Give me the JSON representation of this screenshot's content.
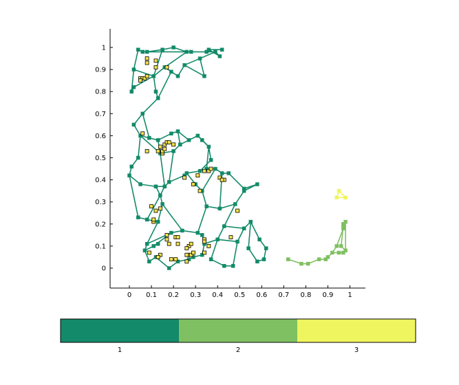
{
  "chart_data": {
    "type": "scatter",
    "title": "",
    "xlabel": "",
    "ylabel": "",
    "xlim": [
      -0.09,
      1.07
    ],
    "ylim": [
      -0.09,
      1.09
    ],
    "xticks": [
      "0",
      "0.1",
      "0.2",
      "0.3",
      "0.4",
      "0.5",
      "0.6",
      "0.7",
      "0.8",
      "0.9",
      "1"
    ],
    "yticks": [
      "0",
      "0.1",
      "0.2",
      "0.3",
      "0.4",
      "0.5",
      "0.6",
      "0.7",
      "0.8",
      "0.9",
      "1"
    ],
    "grid": false,
    "colorbar": {
      "ticks": [
        "1",
        "2",
        "3"
      ],
      "colors": [
        "#138A69",
        "#7FC062",
        "#EFF55E"
      ],
      "placement": "bottom"
    },
    "series": [
      {
        "name": "1",
        "color": "#138A69",
        "type": "network",
        "nodes": [
          [
            0.04,
            0.99
          ],
          [
            0.06,
            0.98
          ],
          [
            0.08,
            0.98
          ],
          [
            0.15,
            0.99
          ],
          [
            0.2,
            1.0
          ],
          [
            0.26,
            0.98
          ],
          [
            0.28,
            0.98
          ],
          [
            0.35,
            0.98
          ],
          [
            0.36,
            0.99
          ],
          [
            0.42,
            0.99
          ],
          [
            0.41,
            0.96
          ],
          [
            0.39,
            0.98
          ],
          [
            0.01,
            0.8
          ],
          [
            0.02,
            0.82
          ],
          [
            0.02,
            0.9
          ],
          [
            0.11,
            0.87
          ],
          [
            0.16,
            0.91
          ],
          [
            0.19,
            0.89
          ],
          [
            0.22,
            0.87
          ],
          [
            0.25,
            0.92
          ],
          [
            0.32,
            0.95
          ],
          [
            0.34,
            0.87
          ],
          [
            0.13,
            0.77
          ],
          [
            0.12,
            0.8
          ],
          [
            0.06,
            0.7
          ],
          [
            0.02,
            0.65
          ],
          [
            0.05,
            0.6
          ],
          [
            0.04,
            0.5
          ],
          [
            0.01,
            0.46
          ],
          [
            0.0,
            0.42
          ],
          [
            0.05,
            0.38
          ],
          [
            0.09,
            0.59
          ],
          [
            0.13,
            0.58
          ],
          [
            0.19,
            0.61
          ],
          [
            0.22,
            0.62
          ],
          [
            0.23,
            0.56
          ],
          [
            0.2,
            0.53
          ],
          [
            0.14,
            0.52
          ],
          [
            0.27,
            0.58
          ],
          [
            0.31,
            0.6
          ],
          [
            0.33,
            0.58
          ],
          [
            0.36,
            0.55
          ],
          [
            0.37,
            0.49
          ],
          [
            0.32,
            0.44
          ],
          [
            0.26,
            0.43
          ],
          [
            0.25,
            0.42
          ],
          [
            0.18,
            0.39
          ],
          [
            0.16,
            0.37
          ],
          [
            0.12,
            0.37
          ],
          [
            0.04,
            0.23
          ],
          [
            0.08,
            0.22
          ],
          [
            0.13,
            0.21
          ],
          [
            0.15,
            0.29
          ],
          [
            0.14,
            0.33
          ],
          [
            0.35,
            0.45
          ],
          [
            0.39,
            0.45
          ],
          [
            0.42,
            0.43
          ],
          [
            0.45,
            0.43
          ],
          [
            0.52,
            0.36
          ],
          [
            0.58,
            0.38
          ],
          [
            0.52,
            0.35
          ],
          [
            0.48,
            0.29
          ],
          [
            0.41,
            0.27
          ],
          [
            0.35,
            0.28
          ],
          [
            0.33,
            0.35
          ],
          [
            0.3,
            0.38
          ],
          [
            0.43,
            0.19
          ],
          [
            0.4,
            0.13
          ],
          [
            0.37,
            0.04
          ],
          [
            0.43,
            0.01
          ],
          [
            0.47,
            0.01
          ],
          [
            0.49,
            0.12
          ],
          [
            0.52,
            0.18
          ],
          [
            0.55,
            0.21
          ],
          [
            0.59,
            0.13
          ],
          [
            0.62,
            0.09
          ],
          [
            0.61,
            0.04
          ],
          [
            0.58,
            0.03
          ],
          [
            0.54,
            0.09
          ],
          [
            0.08,
            0.11
          ],
          [
            0.07,
            0.08
          ],
          [
            0.09,
            0.03
          ],
          [
            0.12,
            0.05
          ],
          [
            0.18,
            0.0
          ],
          [
            0.22,
            0.03
          ],
          [
            0.27,
            0.04
          ],
          [
            0.29,
            0.05
          ],
          [
            0.33,
            0.06
          ],
          [
            0.34,
            0.11
          ],
          [
            0.33,
            0.15
          ],
          [
            0.31,
            0.16
          ],
          [
            0.24,
            0.17
          ],
          [
            0.19,
            0.16
          ],
          [
            0.13,
            0.11
          ],
          [
            0.11,
            0.1
          ]
        ],
        "edges": [
          [
            0,
            1
          ],
          [
            1,
            2
          ],
          [
            2,
            3
          ],
          [
            3,
            4
          ],
          [
            4,
            5
          ],
          [
            5,
            6
          ],
          [
            6,
            7
          ],
          [
            7,
            8
          ],
          [
            8,
            9
          ],
          [
            8,
            10
          ],
          [
            10,
            11
          ],
          [
            11,
            7
          ],
          [
            2,
            6
          ],
          [
            0,
            14
          ],
          [
            14,
            12
          ],
          [
            12,
            13
          ],
          [
            13,
            15
          ],
          [
            15,
            16
          ],
          [
            16,
            17
          ],
          [
            17,
            18
          ],
          [
            18,
            19
          ],
          [
            19,
            20
          ],
          [
            20,
            11
          ],
          [
            20,
            21
          ],
          [
            21,
            19
          ],
          [
            17,
            22
          ],
          [
            22,
            23
          ],
          [
            23,
            15
          ],
          [
            15,
            3
          ],
          [
            16,
            5
          ],
          [
            14,
            15
          ],
          [
            22,
            24
          ],
          [
            24,
            25
          ],
          [
            25,
            26
          ],
          [
            26,
            27
          ],
          [
            27,
            28
          ],
          [
            28,
            29
          ],
          [
            29,
            30
          ],
          [
            24,
            31
          ],
          [
            31,
            32
          ],
          [
            32,
            33
          ],
          [
            33,
            34
          ],
          [
            34,
            35
          ],
          [
            35,
            36
          ],
          [
            36,
            37
          ],
          [
            37,
            26
          ],
          [
            31,
            26
          ],
          [
            32,
            37
          ],
          [
            34,
            38
          ],
          [
            38,
            39
          ],
          [
            39,
            40
          ],
          [
            40,
            41
          ],
          [
            41,
            42
          ],
          [
            42,
            43
          ],
          [
            43,
            44
          ],
          [
            44,
            45
          ],
          [
            45,
            46
          ],
          [
            46,
            47
          ],
          [
            47,
            48
          ],
          [
            48,
            30
          ],
          [
            47,
            37
          ],
          [
            36,
            46
          ],
          [
            38,
            35
          ],
          [
            39,
            41
          ],
          [
            29,
            49
          ],
          [
            49,
            50
          ],
          [
            50,
            51
          ],
          [
            51,
            52
          ],
          [
            52,
            53
          ],
          [
            53,
            48
          ],
          [
            50,
            53
          ],
          [
            53,
            47
          ],
          [
            41,
            54
          ],
          [
            54,
            55
          ],
          [
            55,
            56
          ],
          [
            56,
            57
          ],
          [
            57,
            58
          ],
          [
            58,
            59
          ],
          [
            59,
            60
          ],
          [
            60,
            61
          ],
          [
            61,
            62
          ],
          [
            62,
            63
          ],
          [
            63,
            64
          ],
          [
            64,
            65
          ],
          [
            65,
            44
          ],
          [
            55,
            64
          ],
          [
            56,
            62
          ],
          [
            43,
            54
          ],
          [
            60,
            58
          ],
          [
            61,
            66
          ],
          [
            66,
            67
          ],
          [
            67,
            68
          ],
          [
            68,
            69
          ],
          [
            69,
            70
          ],
          [
            70,
            71
          ],
          [
            71,
            72
          ],
          [
            72,
            73
          ],
          [
            73,
            74
          ],
          [
            74,
            75
          ],
          [
            75,
            76
          ],
          [
            76,
            77
          ],
          [
            77,
            78
          ],
          [
            78,
            73
          ],
          [
            71,
            67
          ],
          [
            72,
            66
          ],
          [
            51,
            79
          ],
          [
            79,
            80
          ],
          [
            80,
            81
          ],
          [
            81,
            82
          ],
          [
            82,
            83
          ],
          [
            83,
            84
          ],
          [
            84,
            85
          ],
          [
            85,
            86
          ],
          [
            86,
            87
          ],
          [
            87,
            88
          ],
          [
            88,
            89
          ],
          [
            89,
            90
          ],
          [
            90,
            91
          ],
          [
            91,
            92
          ],
          [
            92,
            79
          ],
          [
            93,
            94
          ],
          [
            94,
            92
          ],
          [
            93,
            80
          ],
          [
            88,
            67
          ],
          [
            63,
            90
          ],
          [
            52,
            91
          ]
        ],
        "markers_yellow": [
          [
            0.08,
            0.95
          ],
          [
            0.12,
            0.94
          ],
          [
            0.08,
            0.93
          ],
          [
            0.12,
            0.91
          ],
          [
            0.17,
            0.91
          ],
          [
            0.05,
            0.86
          ],
          [
            0.06,
            0.86
          ],
          [
            0.07,
            0.86
          ],
          [
            0.08,
            0.87
          ],
          [
            0.05,
            0.85
          ],
          [
            0.06,
            0.61
          ],
          [
            0.16,
            0.56
          ],
          [
            0.17,
            0.57
          ],
          [
            0.18,
            0.57
          ],
          [
            0.14,
            0.55
          ],
          [
            0.13,
            0.53
          ],
          [
            0.08,
            0.53
          ],
          [
            0.15,
            0.52
          ],
          [
            0.15,
            0.53
          ],
          [
            0.16,
            0.54
          ],
          [
            0.2,
            0.56
          ],
          [
            0.34,
            0.44
          ],
          [
            0.36,
            0.44
          ],
          [
            0.37,
            0.45
          ],
          [
            0.31,
            0.42
          ],
          [
            0.41,
            0.41
          ],
          [
            0.43,
            0.4
          ],
          [
            0.42,
            0.4
          ],
          [
            0.25,
            0.41
          ],
          [
            0.29,
            0.38
          ],
          [
            0.32,
            0.35
          ],
          [
            0.1,
            0.28
          ],
          [
            0.12,
            0.26
          ],
          [
            0.14,
            0.27
          ],
          [
            0.11,
            0.21
          ],
          [
            0.11,
            0.22
          ],
          [
            0.49,
            0.26
          ],
          [
            0.17,
            0.15
          ],
          [
            0.17,
            0.13
          ],
          [
            0.21,
            0.14
          ],
          [
            0.22,
            0.14
          ],
          [
            0.18,
            0.11
          ],
          [
            0.22,
            0.11
          ],
          [
            0.27,
            0.1
          ],
          [
            0.26,
            0.09
          ],
          [
            0.28,
            0.11
          ],
          [
            0.34,
            0.13
          ],
          [
            0.34,
            0.12
          ],
          [
            0.46,
            0.14
          ],
          [
            0.36,
            0.1
          ],
          [
            0.09,
            0.07
          ],
          [
            0.14,
            0.06
          ],
          [
            0.13,
            0.05
          ],
          [
            0.19,
            0.04
          ],
          [
            0.21,
            0.04
          ],
          [
            0.26,
            0.03
          ],
          [
            0.27,
            0.06
          ],
          [
            0.28,
            0.06
          ],
          [
            0.29,
            0.07
          ],
          [
            0.34,
            0.07
          ],
          [
            0.26,
            0.06
          ]
        ]
      },
      {
        "name": "2",
        "color": "#7FC062",
        "type": "network",
        "nodes": [
          [
            0.72,
            0.04
          ],
          [
            0.78,
            0.02
          ],
          [
            0.81,
            0.02
          ],
          [
            0.86,
            0.04
          ],
          [
            0.89,
            0.04
          ],
          [
            0.9,
            0.05
          ],
          [
            0.92,
            0.07
          ],
          [
            0.95,
            0.07
          ],
          [
            0.97,
            0.07
          ],
          [
            0.98,
            0.08
          ],
          [
            0.96,
            0.1
          ],
          [
            0.94,
            0.1
          ],
          [
            0.97,
            0.19
          ],
          [
            0.97,
            0.2
          ],
          [
            0.98,
            0.21
          ],
          [
            0.97,
            0.18
          ]
        ],
        "edges": [
          [
            0,
            1
          ],
          [
            1,
            2
          ],
          [
            2,
            3
          ],
          [
            3,
            4
          ],
          [
            4,
            5
          ],
          [
            5,
            6
          ],
          [
            6,
            7
          ],
          [
            7,
            8
          ],
          [
            8,
            9
          ],
          [
            9,
            10
          ],
          [
            10,
            11
          ],
          [
            11,
            6
          ],
          [
            10,
            12
          ],
          [
            12,
            13
          ],
          [
            13,
            14
          ],
          [
            14,
            9
          ],
          [
            12,
            15
          ],
          [
            15,
            11
          ],
          [
            13,
            15
          ]
        ]
      },
      {
        "name": "3",
        "color": "#EFF55E",
        "type": "network",
        "nodes": [
          [
            0.95,
            0.35
          ],
          [
            0.94,
            0.32
          ],
          [
            0.98,
            0.32
          ]
        ],
        "edges": [
          [
            0,
            1
          ],
          [
            1,
            2
          ],
          [
            2,
            0
          ]
        ]
      }
    ]
  }
}
